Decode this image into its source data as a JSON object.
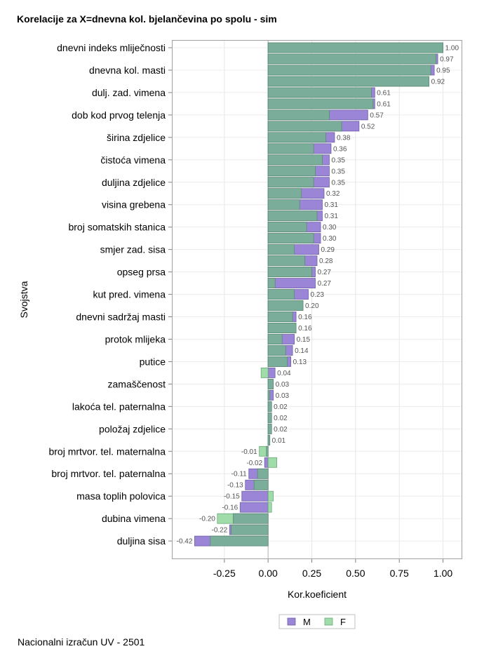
{
  "title": "Korelacije za X=dnevna kol. bjelančevina po spolu - sim",
  "footer": "Nacionalni izračun UV - 2501",
  "chart_data": {
    "type": "bar",
    "orientation": "horizontal",
    "xlabel": "Kor.koeficient",
    "ylabel": "Svojstva",
    "xlim": [
      -0.55,
      1.11
    ],
    "xticks": [
      -0.25,
      0.0,
      0.25,
      0.5,
      0.75,
      1.0
    ],
    "xtick_labels": [
      "-0.25",
      "0.00",
      "0.25",
      "0.50",
      "0.75",
      "1.00"
    ],
    "grid": true,
    "legend_position": "bottom",
    "colors": {
      "M": "#9a85d6",
      "F": "#9fdcaa",
      "overlap": "#7aae9a"
    },
    "category_labels": [
      "dnevni indeks mliječnosti",
      "dnevna kol. masti",
      "dulj. zad. vimena",
      "dob kod prvog telenja",
      "širina zdjelice",
      "čistoća vimena",
      "duljina zdjelice",
      "visina grebena",
      "broj somatskih stanica",
      "smjer zad. sisa",
      "opseg prsa",
      "kut pred. vimena",
      "dnevni sadržaj masti",
      "protok mlijeka",
      "putice",
      "zamaščenost",
      "lakoća tel. paternalna",
      "položaj zdjelice",
      "broj mrtvor. tel. maternalna",
      "broj mrtvor. tel. paternalna",
      "masa toplih polovica",
      "dubina vimena",
      "duljina sisa"
    ],
    "series": [
      {
        "name": "M",
        "values": [
          1.0,
          0.97,
          0.95,
          0.92,
          0.61,
          0.61,
          0.57,
          0.52,
          0.38,
          0.36,
          0.35,
          0.35,
          0.35,
          0.32,
          0.31,
          0.31,
          0.3,
          0.3,
          0.29,
          0.28,
          0.27,
          0.27,
          0.23,
          0.2,
          0.16,
          0.16,
          0.15,
          0.14,
          0.13,
          0.04,
          0.03,
          0.03,
          0.02,
          0.02,
          0.02,
          0.01,
          -0.01,
          -0.02,
          -0.11,
          -0.13,
          -0.15,
          -0.16,
          -0.2,
          -0.22,
          -0.42
        ]
      },
      {
        "name": "F",
        "values": [
          1.0,
          0.96,
          0.93,
          0.92,
          0.59,
          0.6,
          0.35,
          0.42,
          0.33,
          0.26,
          0.31,
          0.27,
          0.26,
          0.19,
          0.18,
          0.28,
          0.22,
          0.26,
          0.15,
          0.21,
          0.25,
          0.04,
          0.15,
          0.2,
          0.14,
          0.16,
          0.08,
          0.1,
          0.11,
          -0.04,
          0.03,
          0.01,
          0.02,
          0.02,
          0.02,
          0.01,
          -0.05,
          0.05,
          -0.06,
          -0.08,
          0.03,
          0.02,
          -0.29,
          -0.21,
          -0.33
        ]
      }
    ],
    "value_labels": [
      "1.00",
      "0.97",
      "0.95",
      "0.92",
      "0.61",
      "0.61",
      "0.57",
      "0.52",
      "0.38",
      "0.36",
      "0.35",
      "0.35",
      "0.35",
      "0.32",
      "0.31",
      "0.31",
      "0.30",
      "0.30",
      "0.29",
      "0.28",
      "0.27",
      "0.27",
      "0.23",
      "0.20",
      "0.16",
      "0.16",
      "0.15",
      "0.14",
      "0.13",
      "0.04",
      "0.03",
      "0.03",
      "0.02",
      "0.02",
      "0.02",
      "0.01",
      "-0.01",
      "-0.02",
      "-0.11",
      "-0.13",
      "-0.15",
      "-0.16",
      "-0.20",
      "-0.22",
      "-0.42"
    ]
  }
}
